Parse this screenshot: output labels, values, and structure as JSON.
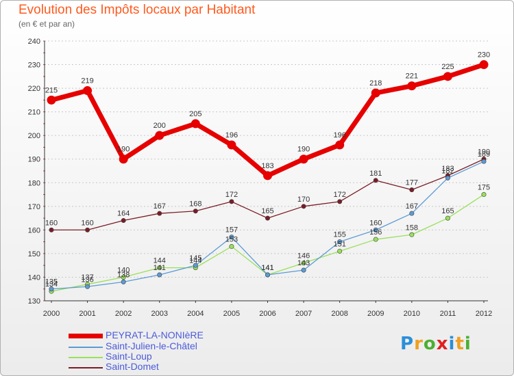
{
  "chart_data": {
    "type": "line",
    "title": "Evolution des Impôts locaux par Habitant",
    "subtitle": "(en € et par an)",
    "xlabel": "",
    "ylabel": "",
    "ylim": [
      130,
      240
    ],
    "yticks": [
      130,
      140,
      150,
      160,
      170,
      180,
      190,
      200,
      210,
      220,
      230,
      240
    ],
    "grid": "horizontal dashed",
    "categories": [
      "2000",
      "2001",
      "2002",
      "2003",
      "2004",
      "2005",
      "2006",
      "2007",
      "2008",
      "2009",
      "2010",
      "2011",
      "2012"
    ],
    "series": [
      {
        "name": "PEYRAT-LA-NONIèRE",
        "color": "#e60000",
        "values": [
          215,
          219,
          190,
          200,
          205,
          196,
          183,
          190,
          196,
          218,
          221,
          225,
          230
        ],
        "labels": [
          "215",
          "219",
          "190",
          "200",
          "205",
          "196",
          "183",
          "190",
          "196",
          "218",
          "221",
          "225",
          "230"
        ]
      },
      {
        "name": "Saint-Julien-le-Châtel",
        "color": "#5b9bd5",
        "values": [
          135,
          136,
          138,
          141,
          145,
          157,
          141,
          143,
          155,
          160,
          167,
          182,
          189
        ],
        "labels": [
          "135",
          "136",
          "138",
          "141",
          "145",
          "157",
          "141",
          "143",
          "155",
          "160",
          "167",
          "182",
          "189"
        ]
      },
      {
        "name": "Saint-Loup",
        "color": "#99e05a",
        "values": [
          134,
          137,
          140,
          144,
          144,
          153,
          141,
          146,
          151,
          156,
          158,
          165,
          175
        ],
        "labels": [
          "134",
          "137",
          "140",
          "144",
          "144",
          "153",
          "141",
          "146",
          "151",
          "156",
          "158",
          "165",
          "175"
        ]
      },
      {
        "name": "Saint-Domet",
        "color": "#7a1c24",
        "values": [
          160,
          160,
          164,
          167,
          168,
          172,
          165,
          170,
          172,
          181,
          177,
          183,
          190
        ],
        "labels": [
          "160",
          "160",
          "164",
          "167",
          "168",
          "172",
          "165",
          "170",
          "172",
          "181",
          "177",
          "183",
          "190"
        ]
      }
    ],
    "legend": "bottom-left"
  },
  "logo": {
    "letters": [
      "P",
      "r",
      "o",
      "x",
      "i",
      "t",
      "i"
    ],
    "colors": [
      "#2a8fd8",
      "#f0a020",
      "#4caf32",
      "#e02020",
      "#2a8fd8",
      "#f0a020",
      "#4caf32"
    ]
  }
}
